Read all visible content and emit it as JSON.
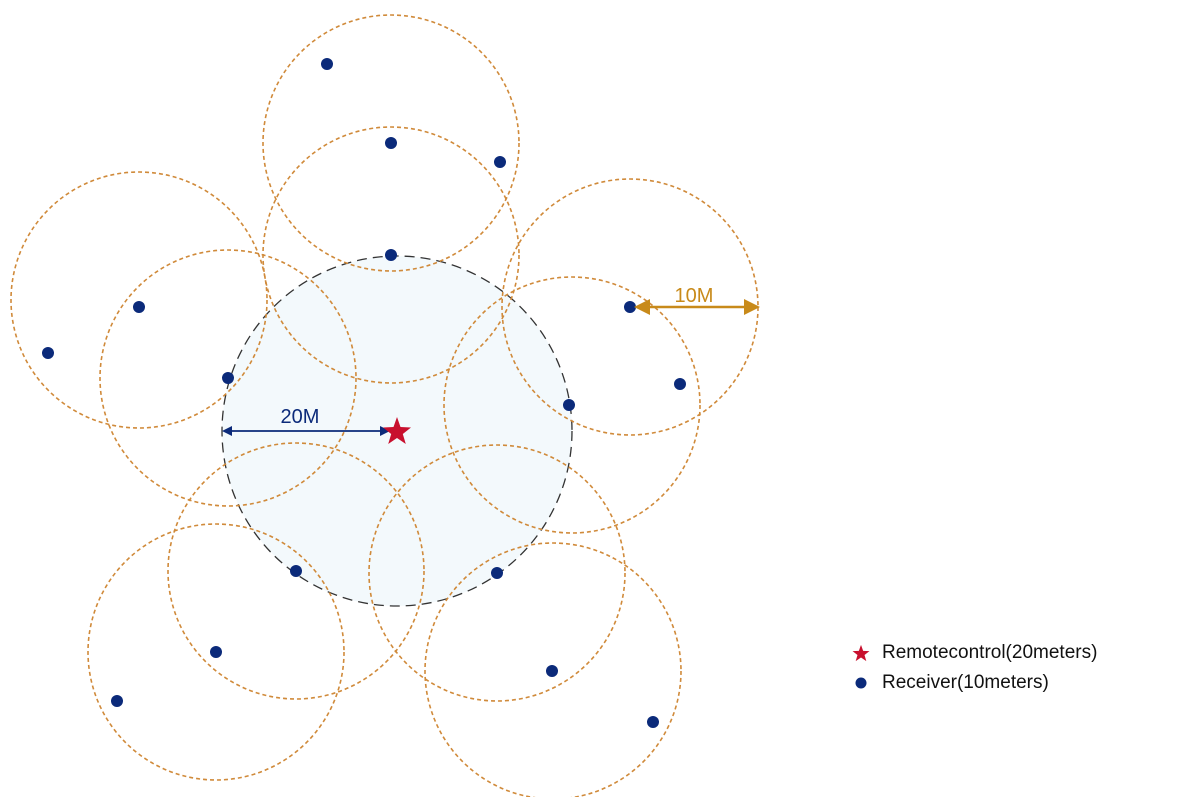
{
  "remote_label": "20M",
  "receiver_label": "10M",
  "legend": {
    "remote": "Remotecontrol(20meters)",
    "receiver": "Receiver(10meters)"
  },
  "colors": {
    "remote_star": "#c8102e",
    "receiver_dot": "#0b2a7a",
    "receiver_circle": "#d08a3a",
    "remote_circle": "#333333",
    "remote_area_fill": "#f3f9fc",
    "remote_arrow": "#0b2a7a",
    "receiver_arrow": "#c88a1a",
    "receiver_label_color": "#c88a1a",
    "remote_label_color": "#0b2a7a"
  }
}
